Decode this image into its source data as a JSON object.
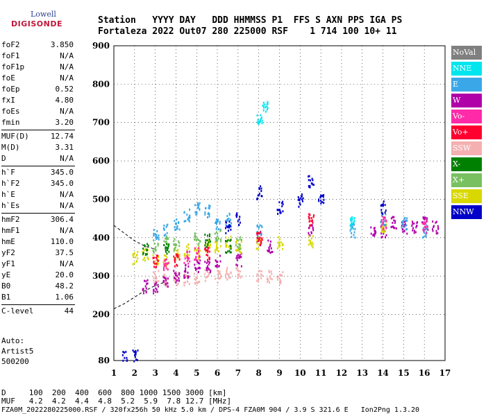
{
  "logo": {
    "top": "Lowell",
    "main": "DIGISONDE"
  },
  "header": {
    "line1": "Station   YYYY DAY   DDD HHMMSS P1  FFS S AXN PPS IGA PS",
    "line2": "Fortaleza 2022 Out07 280 225000 RSF    1 714 100 10+ 11"
  },
  "params": [
    {
      "name": "foF2",
      "value": "3.850"
    },
    {
      "name": "foF1",
      "value": "N/A"
    },
    {
      "name": "foF1p",
      "value": "N/A"
    },
    {
      "name": "foE",
      "value": "N/A"
    },
    {
      "name": "foEp",
      "value": "0.52"
    },
    {
      "name": "fxI",
      "value": "4.80"
    },
    {
      "name": "foEs",
      "value": "N/A"
    },
    {
      "name": "fmin",
      "value": "3.20"
    },
    {
      "sep": true
    },
    {
      "name": "MUF(D)",
      "value": "12.74"
    },
    {
      "name": "M(D)",
      "value": "3.31"
    },
    {
      "name": "D",
      "value": "N/A"
    },
    {
      "sep": true
    },
    {
      "name": "h`F",
      "value": "345.0"
    },
    {
      "name": "h`F2",
      "value": "345.0"
    },
    {
      "name": "h`E",
      "value": "N/A"
    },
    {
      "name": "h`Es",
      "value": "N/A"
    },
    {
      "sep": true
    },
    {
      "name": "hmF2",
      "value": "306.4"
    },
    {
      "name": "hmF1",
      "value": "N/A"
    },
    {
      "name": "hmE",
      "value": "110.0"
    },
    {
      "name": "yF2",
      "value": "37.5"
    },
    {
      "name": "yF1",
      "value": "N/A"
    },
    {
      "name": "yE",
      "value": "20.0"
    },
    {
      "name": "B0",
      "value": "48.2"
    },
    {
      "name": "B1",
      "value": "1.06"
    },
    {
      "sep": true
    },
    {
      "name": "C-level",
      "value": "44"
    }
  ],
  "auto": {
    "line1": "Auto:",
    "line2": "Artist5",
    "line3": "500200"
  },
  "legend": [
    {
      "label": "NoVal",
      "color": "#808080"
    },
    {
      "label": "NNE",
      "color": "#00e5ee"
    },
    {
      "label": "E",
      "color": "#3aa8e8"
    },
    {
      "label": "W",
      "color": "#b000a8"
    },
    {
      "label": "Vo-",
      "color": "#ff2aa8"
    },
    {
      "label": "Vo+",
      "color": "#ff0030"
    },
    {
      "label": "SSW",
      "color": "#f4b0b0"
    },
    {
      "label": "X-",
      "color": "#008000"
    },
    {
      "label": "X+",
      "color": "#78c060"
    },
    {
      "label": "SSE",
      "color": "#d8d800"
    },
    {
      "label": "NNW",
      "color": "#0000c8"
    }
  ],
  "bottom": {
    "d_line": "D     100  200  400  600  800 1000 1500 3000 [km]",
    "muf_line": "MUF   4.2  4.2  4.4  4.8  5.2  5.9  7.8 12.7 [MHz]",
    "footer": "FZA0M_2022280225000.RSF / 320fx256h 50 kHz 5.0 km / DPS-4 FZA0M 904 / 3.9 S 321.6 E   Ion2Png 1.3.20"
  },
  "chart_data": {
    "type": "scatter",
    "xlabel": "",
    "ylabel": "",
    "xlim": [
      1,
      17
    ],
    "ylim": [
      80,
      900
    ],
    "x_ticks": [
      1,
      2,
      3,
      4,
      5,
      6,
      7,
      8,
      9,
      10,
      11,
      12,
      13,
      14,
      15,
      16,
      17
    ],
    "y_ticks": [
      80,
      200,
      300,
      400,
      500,
      600,
      700,
      800,
      900
    ],
    "grid": true,
    "series": [
      {
        "name": "SSW",
        "color": "#f4b0b0",
        "points": [
          [
            3,
            300
          ],
          [
            3.5,
            290
          ],
          [
            4,
            295
          ],
          [
            4.5,
            290
          ],
          [
            5,
            300
          ],
          [
            5.5,
            305
          ],
          [
            6,
            300
          ],
          [
            6.5,
            310
          ],
          [
            7,
            315
          ],
          [
            8,
            300
          ],
          [
            8.5,
            300
          ],
          [
            9,
            300
          ]
        ]
      },
      {
        "name": "W",
        "color": "#b000a8",
        "points": [
          [
            2.5,
            275
          ],
          [
            3,
            270
          ],
          [
            3.5,
            290
          ],
          [
            4,
            300
          ],
          [
            4.5,
            315
          ],
          [
            5,
            330
          ],
          [
            5.5,
            330
          ],
          [
            6,
            340
          ],
          [
            7,
            345
          ],
          [
            8,
            400
          ],
          [
            8.5,
            380
          ],
          [
            10.5,
            420
          ],
          [
            13.5,
            420
          ],
          [
            14,
            420
          ],
          [
            14.5,
            440
          ],
          [
            15,
            430
          ],
          [
            15.5,
            430
          ],
          [
            16,
            440
          ],
          [
            16.5,
            430
          ]
        ]
      },
      {
        "name": "SSE",
        "color": "#d8d800",
        "points": [
          [
            2,
            350
          ],
          [
            2.5,
            360
          ],
          [
            3,
            345
          ],
          [
            3.5,
            345
          ],
          [
            4,
            360
          ],
          [
            4.5,
            370
          ],
          [
            5,
            365
          ],
          [
            5.5,
            380
          ],
          [
            6,
            380
          ],
          [
            6.5,
            390
          ],
          [
            7,
            380
          ],
          [
            8,
            390
          ],
          [
            9,
            390
          ],
          [
            10.5,
            390
          ],
          [
            14,
            430
          ]
        ]
      },
      {
        "name": "E",
        "color": "#3aa8e8",
        "points": [
          [
            3,
            410
          ],
          [
            3.5,
            420
          ],
          [
            4,
            440
          ],
          [
            4.5,
            460
          ],
          [
            5,
            480
          ],
          [
            5.5,
            470
          ],
          [
            6,
            440
          ],
          [
            6.5,
            450
          ],
          [
            8,
            420
          ],
          [
            12.5,
            420
          ],
          [
            14,
            450
          ],
          [
            15,
            440
          ],
          [
            16,
            420
          ]
        ]
      },
      {
        "name": "X+",
        "color": "#78c060",
        "points": [
          [
            3,
            380
          ],
          [
            3.5,
            390
          ],
          [
            4,
            385
          ],
          [
            5,
            400
          ],
          [
            6,
            410
          ],
          [
            7,
            390
          ]
        ]
      },
      {
        "name": "X-",
        "color": "#008000",
        "points": [
          [
            2.5,
            370
          ],
          [
            3.5,
            375
          ],
          [
            5.5,
            395
          ],
          [
            6.5,
            380
          ]
        ]
      },
      {
        "name": "Vo+",
        "color": "#ff0030",
        "points": [
          [
            3,
            340
          ],
          [
            4,
            345
          ],
          [
            5.5,
            360
          ],
          [
            8,
            400
          ],
          [
            10.5,
            450
          ]
        ]
      },
      {
        "name": "Vo-",
        "color": "#ff2aa8",
        "points": [
          [
            3.5,
            330
          ],
          [
            4.5,
            350
          ],
          [
            5,
            360
          ],
          [
            14,
            440
          ],
          [
            16,
            430
          ]
        ]
      },
      {
        "name": "NNW",
        "color": "#0000c8",
        "points": [
          [
            1.5,
            90
          ],
          [
            2,
            95
          ],
          [
            6.5,
            430
          ],
          [
            7,
            450
          ],
          [
            8,
            520
          ],
          [
            9,
            480
          ],
          [
            10,
            500
          ],
          [
            10.5,
            550
          ],
          [
            11,
            500
          ],
          [
            14,
            480
          ]
        ]
      },
      {
        "name": "NNE",
        "color": "#00e5ee",
        "points": [
          [
            8,
            715
          ],
          [
            8.3,
            745
          ],
          [
            12.5,
            440
          ]
        ]
      }
    ],
    "model_curve_E": [
      [
        1,
        215
      ],
      [
        1.5,
        228
      ],
      [
        2,
        245
      ],
      [
        2.5,
        262
      ],
      [
        3,
        275
      ],
      [
        3.5,
        285
      ]
    ],
    "model_curve_F": [
      [
        1,
        432
      ],
      [
        1.5,
        412
      ],
      [
        2,
        392
      ],
      [
        2.5,
        378
      ],
      [
        3,
        370
      ]
    ]
  }
}
